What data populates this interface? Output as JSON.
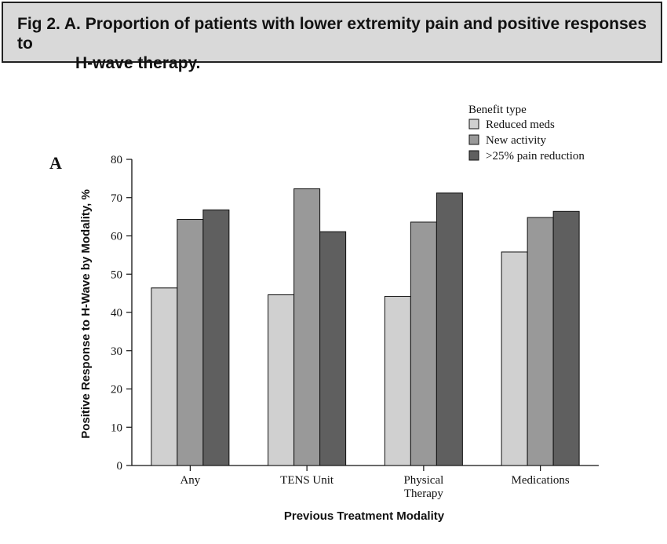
{
  "figure": {
    "title_line1": "Fig 2.  A. Proportion of patients with lower extremity pain and positive responses to",
    "title_line2": "H-wave therapy.",
    "panel_label": "A"
  },
  "chart_data": {
    "type": "bar",
    "categories": [
      "Any",
      "TENS Unit",
      "Physical Therapy",
      "Medications"
    ],
    "category_label_lines": [
      [
        "Any"
      ],
      [
        "TENS Unit"
      ],
      [
        "Physical",
        "Therapy"
      ],
      [
        "Medications"
      ]
    ],
    "series": [
      {
        "name": "Reduced meds",
        "color": "#d0d0d0",
        "values": [
          46.4,
          44.6,
          44.2,
          55.8
        ]
      },
      {
        "name": "New activity",
        "color": "#999999",
        "values": [
          64.3,
          72.3,
          63.6,
          64.8
        ]
      },
      {
        "name": ">25% pain reduction",
        "color": "#5f5f5f",
        "values": [
          66.8,
          61.1,
          71.2,
          66.4
        ]
      }
    ],
    "legend_title": "Benefit type",
    "legend_position": "top-right",
    "xlabel": "Previous Treatment Modality",
    "ylabel": "Positive Response to H-Wave by Modality, %",
    "ylim": [
      0,
      80
    ],
    "yticks": [
      0,
      10,
      20,
      30,
      40,
      50,
      60,
      70,
      80
    ],
    "grid": false
  }
}
